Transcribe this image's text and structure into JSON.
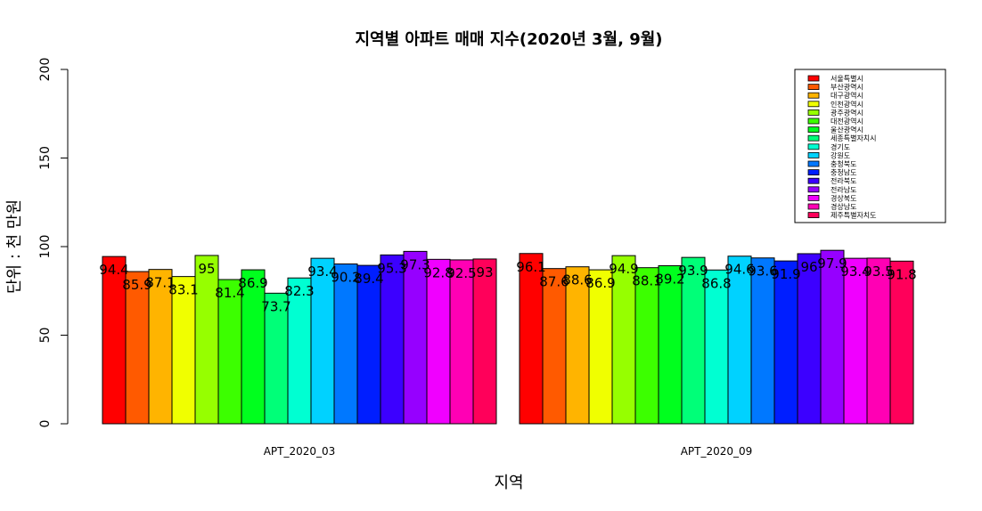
{
  "chart_data": {
    "type": "bar",
    "title": "지역별 아파트 매매 지수(2020년 3월, 9월)",
    "xlabel": "지역",
    "ylabel": "단위 : 천 만원",
    "ylim": [
      0,
      200
    ],
    "yticks": [
      "0",
      "50",
      "100",
      "150",
      "200"
    ],
    "grid": false,
    "legend_position": "top-right",
    "categories": [
      "APT_2020_03",
      "APT_2020_09"
    ],
    "series": [
      {
        "name": "서울특별시",
        "color": "#FF0000",
        "values": [
          94.4,
          96.1
        ]
      },
      {
        "name": "부산광역시",
        "color": "#FF5A00",
        "values": [
          85.9,
          87.6
        ]
      },
      {
        "name": "대구광역시",
        "color": "#FFB400",
        "values": [
          87.1,
          88.6
        ]
      },
      {
        "name": "인천광역시",
        "color": "#F0FF00",
        "values": [
          83.1,
          86.9
        ]
      },
      {
        "name": "광주광역시",
        "color": "#96FF00",
        "values": [
          95,
          94.9
        ]
      },
      {
        "name": "대전광역시",
        "color": "#3CFF00",
        "values": [
          81.4,
          88.1
        ]
      },
      {
        "name": "울산광역시",
        "color": "#00FF1E",
        "values": [
          86.9,
          89.2
        ]
      },
      {
        "name": "세종특별자치시",
        "color": "#00FF78",
        "values": [
          73.7,
          93.9
        ]
      },
      {
        "name": "경기도",
        "color": "#00FFD2",
        "values": [
          82.3,
          86.8
        ]
      },
      {
        "name": "강원도",
        "color": "#00D2FF",
        "values": [
          93.4,
          94.6
        ]
      },
      {
        "name": "충청북도",
        "color": "#0078FF",
        "values": [
          90.2,
          93.6
        ]
      },
      {
        "name": "충청남도",
        "color": "#001EFF",
        "values": [
          89.4,
          91.9
        ]
      },
      {
        "name": "전라북도",
        "color": "#3C00FF",
        "values": [
          95.3,
          96
        ]
      },
      {
        "name": "전라남도",
        "color": "#9600FF",
        "values": [
          97.3,
          97.9
        ]
      },
      {
        "name": "경상북도",
        "color": "#F000FF",
        "values": [
          92.8,
          93.4
        ]
      },
      {
        "name": "경상남도",
        "color": "#FF00B4",
        "values": [
          92.5,
          93.5
        ]
      },
      {
        "name": "제주특별자치도",
        "color": "#FF005A",
        "values": [
          93,
          91.8
        ]
      }
    ]
  }
}
